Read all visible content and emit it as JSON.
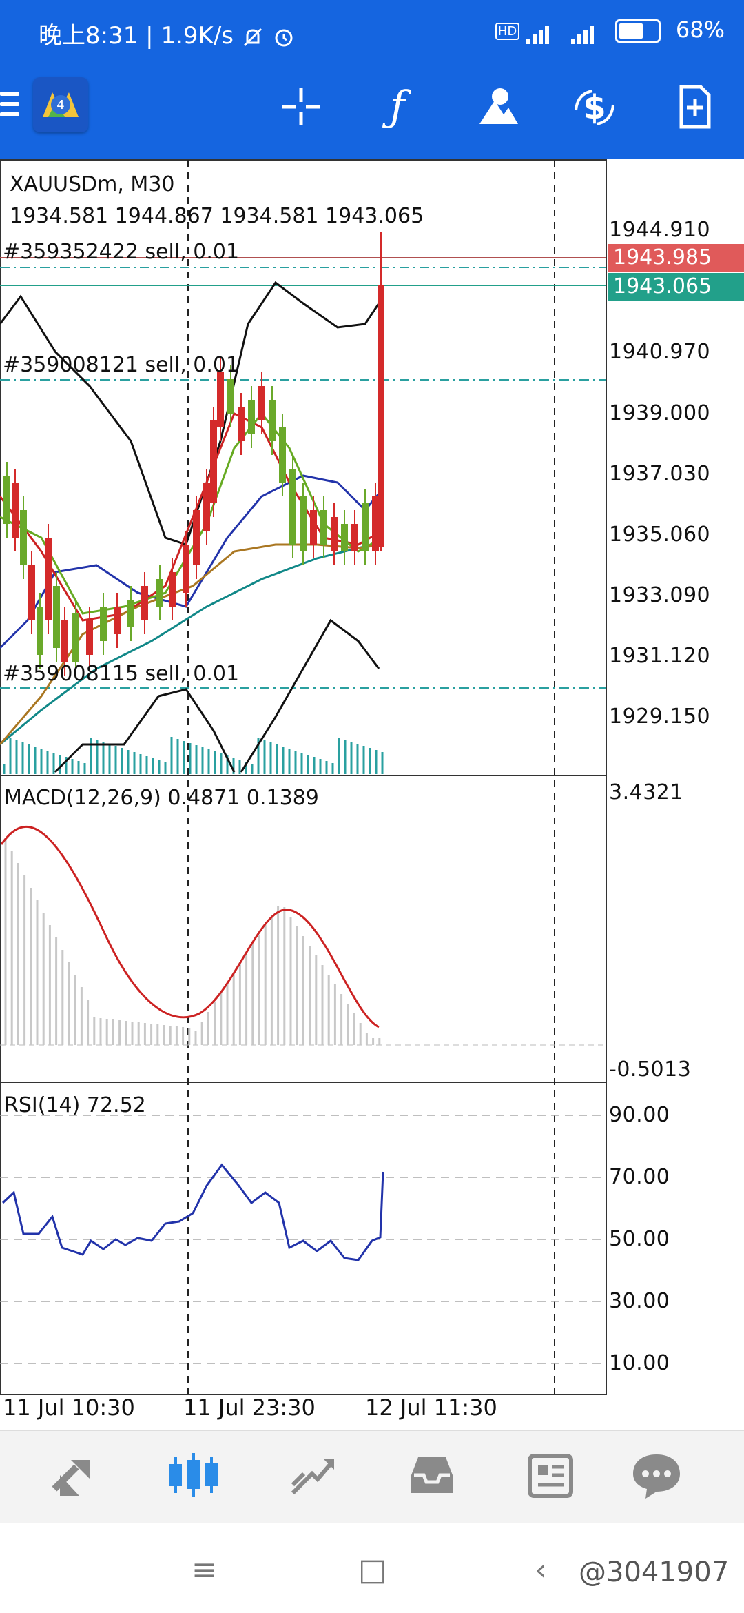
{
  "status_bar": {
    "time": "晚上8:31",
    "net_speed": "1.9K/s",
    "mute_icon": "bell-off-icon",
    "alarm_icon": "alarm-icon",
    "hd": "HD",
    "net1": "4G",
    "net2": "4G",
    "battery": "68%"
  },
  "toolbar": {
    "menu_icon": "hamburger-menu-icon",
    "logo_icon": "app-logo-icon",
    "crosshair_icon": "crosshair-icon",
    "indicator_icon": "function-f-icon",
    "objects_icon": "shapes-icon",
    "symbol_icon": "dollar-exchange-icon",
    "new_order_icon": "new-document-icon"
  },
  "chart_header": {
    "symbol": "XAUUSDm, M30",
    "ohlc": "1934.581 1944.867 1934.581 1943.065"
  },
  "orders": [
    {
      "label": "#359352422 sell, 0.01"
    },
    {
      "label": "#359008121 sell, 0.01"
    },
    {
      "label": "#359008115 sell, 0.01"
    }
  ],
  "price_axis": [
    "1944.910",
    "1940.970",
    "1939.000",
    "1937.030",
    "1935.060",
    "1933.090",
    "1931.120",
    "1929.150"
  ],
  "price_tags": {
    "ask": "1943.985",
    "bid": "1943.065",
    "ask_color": "#e05a5a",
    "bid_color": "#22a08a"
  },
  "macd": {
    "label": "MACD(12,26,9) 0.4871 0.1389",
    "max": "3.4321",
    "min": "-0.5013"
  },
  "rsi": {
    "label": "RSI(14) 72.52",
    "levels": [
      "90.00",
      "70.00",
      "50.00",
      "30.00",
      "10.00"
    ]
  },
  "time_axis": [
    "11 Jul 10:30",
    "11 Jul 23:30",
    "12 Jul 11:30"
  ],
  "bottom_nav": {
    "quotes_icon": "quotes-arrows-icon",
    "chart_icon": "candlestick-chart-icon",
    "trade_icon": "trade-trend-icon",
    "history_icon": "inbox-history-icon",
    "news_icon": "news-icon",
    "messages_icon": "chat-bubble-icon"
  },
  "system_nav": {
    "menu": "≡",
    "home": "□",
    "back": "‹"
  },
  "watermark": "@3041907"
}
